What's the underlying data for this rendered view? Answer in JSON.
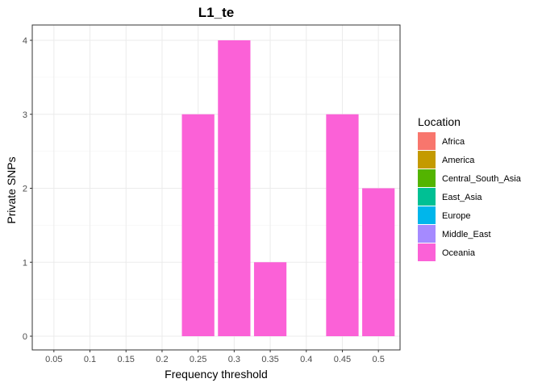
{
  "chart_data": {
    "type": "bar",
    "title": "L1_te",
    "xlabel": "Frequency threshold",
    "ylabel": "Private SNPs",
    "categories": [
      "0.05",
      "0.1",
      "0.15",
      "0.2",
      "0.25",
      "0.3",
      "0.35",
      "0.4",
      "0.45",
      "0.5"
    ],
    "ylim": [
      0,
      4
    ],
    "yticks": [
      "0",
      "1",
      "2",
      "3",
      "4"
    ],
    "grid": true,
    "legend": {
      "title": "Location",
      "position": "right",
      "entries": [
        {
          "label": "Africa",
          "color": "#F8766D"
        },
        {
          "label": "America",
          "color": "#C49A00"
        },
        {
          "label": "Central_South_Asia",
          "color": "#53B400"
        },
        {
          "label": "East_Asia",
          "color": "#00C094"
        },
        {
          "label": "Europe",
          "color": "#00B6EB"
        },
        {
          "label": "Middle_East",
          "color": "#A58AFF"
        },
        {
          "label": "Oceania",
          "color": "#FB61D7"
        }
      ]
    },
    "series": [
      {
        "name": "Africa",
        "values": [
          0,
          0,
          0,
          0,
          0,
          0,
          0,
          0,
          0,
          0
        ]
      },
      {
        "name": "America",
        "values": [
          0,
          0,
          0,
          0,
          0,
          0,
          0,
          0,
          0,
          0
        ]
      },
      {
        "name": "Central_South_Asia",
        "values": [
          0,
          0,
          0,
          0,
          0,
          0,
          0,
          0,
          0,
          0
        ]
      },
      {
        "name": "East_Asia",
        "values": [
          0,
          0,
          0,
          0,
          0,
          0,
          0,
          0,
          0,
          0
        ]
      },
      {
        "name": "Europe",
        "values": [
          0,
          0,
          0,
          0,
          0,
          0,
          0,
          0,
          0,
          0
        ]
      },
      {
        "name": "Middle_East",
        "values": [
          0,
          0,
          0,
          0,
          0,
          0,
          0,
          0,
          0,
          0
        ]
      },
      {
        "name": "Oceania",
        "values": [
          0,
          0,
          0,
          0,
          3,
          4,
          1,
          0,
          3,
          2
        ]
      }
    ]
  }
}
